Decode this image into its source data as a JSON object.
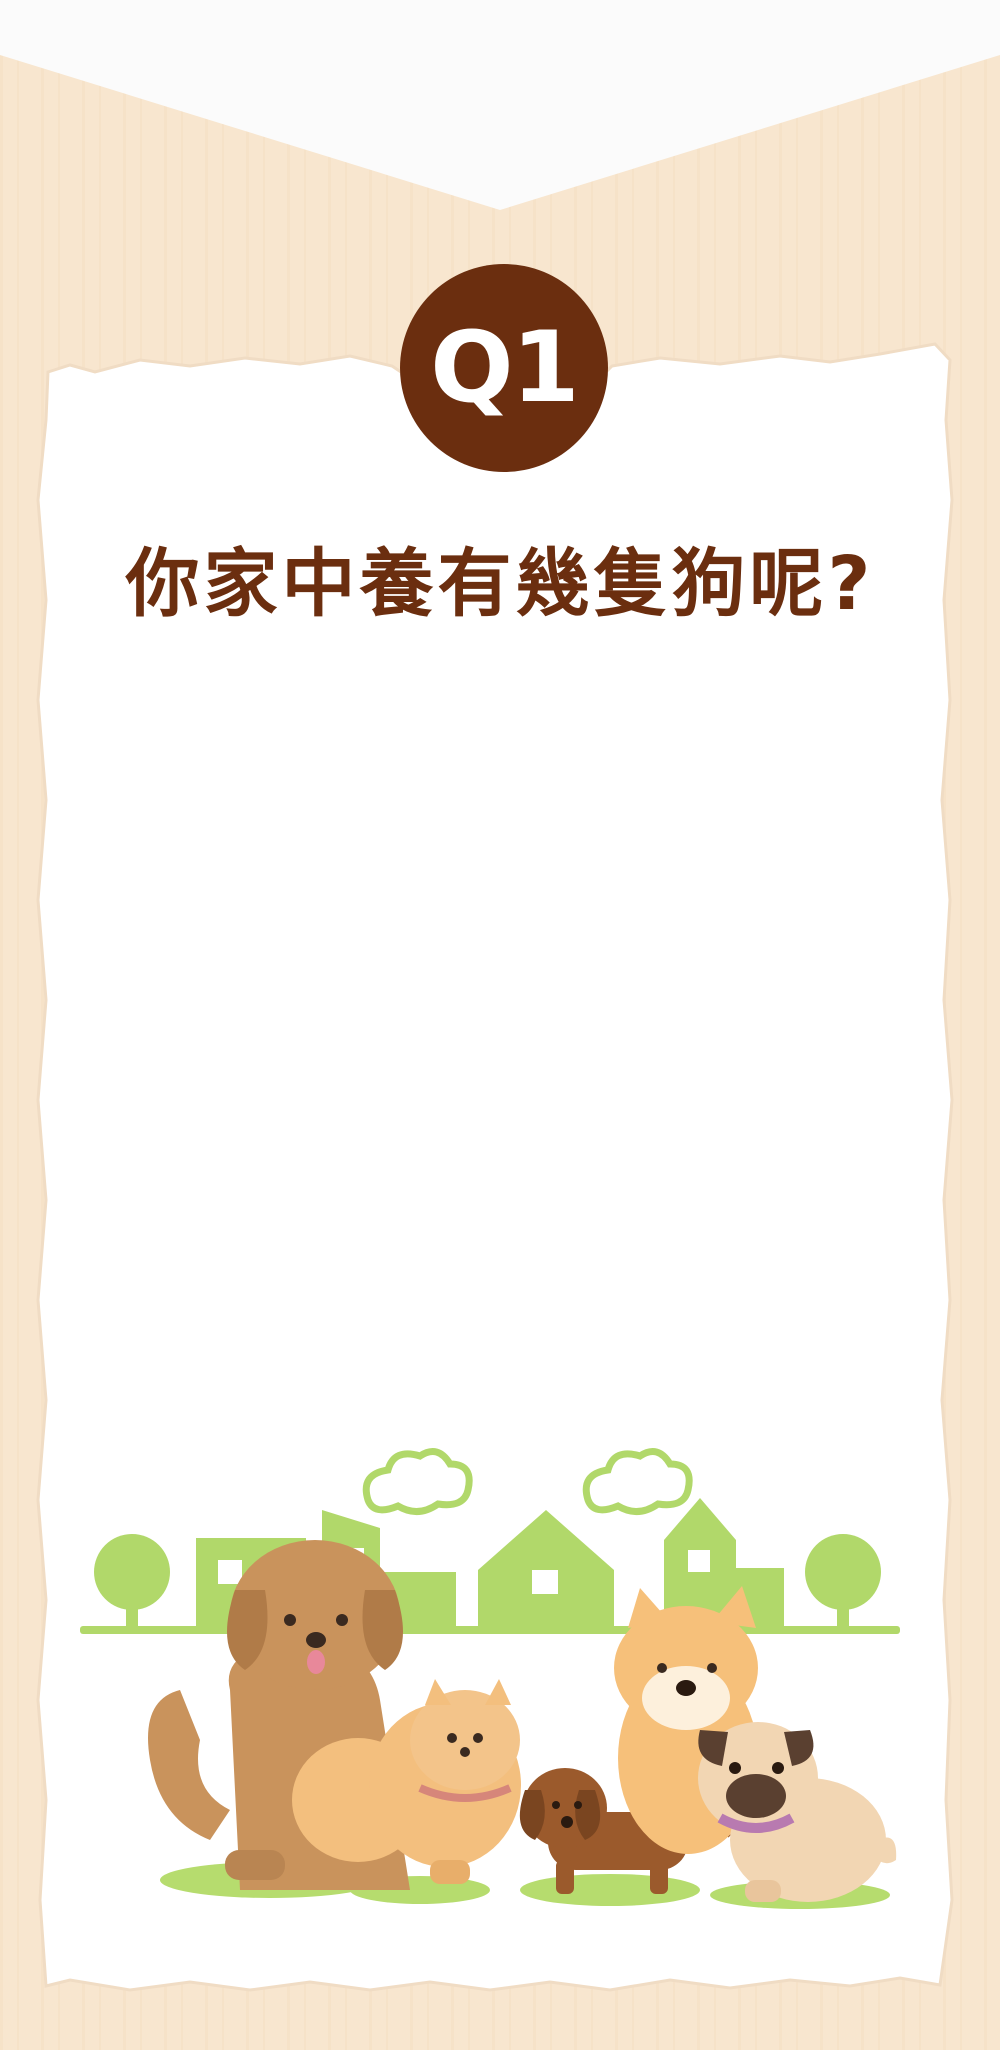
{
  "quiz": {
    "badge": "Q1",
    "question": "你家中養有幾隻狗呢?"
  },
  "colors": {
    "brand_brown": "#6b2e0f",
    "wood_background": "#f8e6cf",
    "card_white": "#ffffff",
    "scene_green": "#b1d86a"
  },
  "illustration": {
    "subjects": [
      "golden-retriever",
      "pomeranian",
      "dachshund",
      "shiba-inu",
      "pug"
    ],
    "background": [
      "houses",
      "trees",
      "clouds",
      "grass"
    ]
  }
}
